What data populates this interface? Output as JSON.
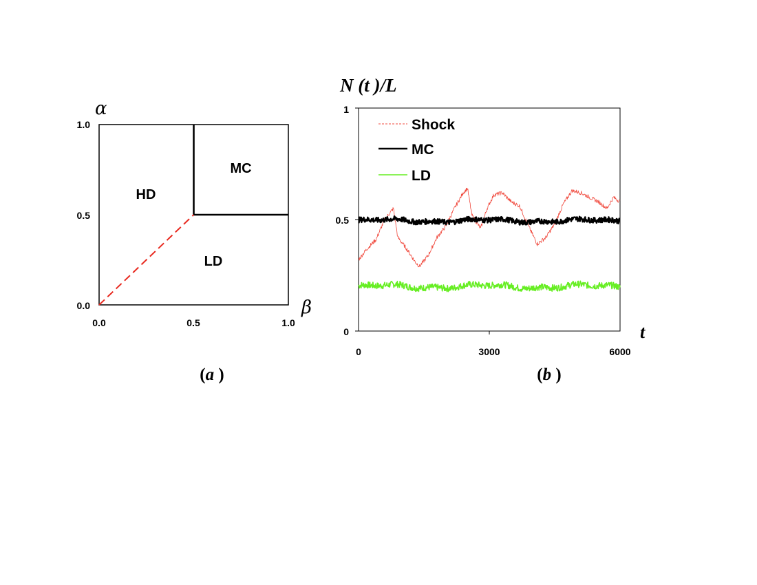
{
  "chart_data": [
    {
      "type": "phase-diagram",
      "panel_caption": "(a )",
      "caption_letter": "a",
      "ylabel": "α",
      "xlabel": "β",
      "xlim": [
        0,
        1
      ],
      "ylim": [
        0,
        1
      ],
      "x_ticks": [
        "0.0",
        "0.5",
        "1.0"
      ],
      "y_ticks": [
        "0.0",
        "0.5",
        "1.0"
      ],
      "regions": [
        {
          "label": "HD",
          "x": 0.22,
          "y": 0.62
        },
        {
          "label": "MC",
          "x": 0.75,
          "y": 0.76
        },
        {
          "label": "LD",
          "x": 0.6,
          "y": 0.25
        }
      ],
      "boundaries": [
        {
          "kind": "solid",
          "color": "#000000",
          "points": [
            [
              0.5,
              1.0
            ],
            [
              0.5,
              0.5
            ]
          ]
        },
        {
          "kind": "solid",
          "color": "#000000",
          "points": [
            [
              0.5,
              0.5
            ],
            [
              1.0,
              0.5
            ]
          ]
        },
        {
          "kind": "dashed",
          "color": "#e8281e",
          "points": [
            [
              0.0,
              0.0
            ],
            [
              0.5,
              0.5
            ]
          ]
        }
      ]
    },
    {
      "type": "line",
      "panel_caption": "(b )",
      "caption_letter": "b",
      "ylabel": "N (t )/L",
      "xlabel": "t",
      "xlim": [
        0,
        6000
      ],
      "ylim": [
        0,
        1
      ],
      "x_ticks": [
        "0",
        "3000",
        "6000"
      ],
      "y_ticks": [
        "0",
        "0.5",
        "1"
      ],
      "legend_position": "top-left",
      "series": [
        {
          "name": "Shock",
          "color": "#f0483c",
          "style": "thin",
          "points": [
            [
              0,
              0.32
            ],
            [
              200,
              0.37
            ],
            [
              400,
              0.41
            ],
            [
              600,
              0.5
            ],
            [
              800,
              0.55
            ],
            [
              900,
              0.42
            ],
            [
              1100,
              0.37
            ],
            [
              1300,
              0.31
            ],
            [
              1400,
              0.29
            ],
            [
              1600,
              0.34
            ],
            [
              1800,
              0.42
            ],
            [
              2000,
              0.47
            ],
            [
              2200,
              0.55
            ],
            [
              2400,
              0.62
            ],
            [
              2500,
              0.64
            ],
            [
              2600,
              0.52
            ],
            [
              2800,
              0.46
            ],
            [
              2950,
              0.55
            ],
            [
              3100,
              0.61
            ],
            [
              3300,
              0.62
            ],
            [
              3500,
              0.58
            ],
            [
              3700,
              0.56
            ],
            [
              3900,
              0.47
            ],
            [
              4100,
              0.39
            ],
            [
              4300,
              0.42
            ],
            [
              4500,
              0.48
            ],
            [
              4700,
              0.57
            ],
            [
              4900,
              0.63
            ],
            [
              5100,
              0.62
            ],
            [
              5300,
              0.6
            ],
            [
              5500,
              0.58
            ],
            [
              5700,
              0.55
            ],
            [
              5850,
              0.6
            ],
            [
              6000,
              0.58
            ]
          ]
        },
        {
          "name": "MC",
          "color": "#000000",
          "style": "thick",
          "mean": 0.495,
          "amplitude": 0.012
        },
        {
          "name": "LD",
          "color": "#66ee22",
          "style": "medium",
          "mean": 0.2,
          "amplitude": 0.015
        }
      ]
    }
  ]
}
